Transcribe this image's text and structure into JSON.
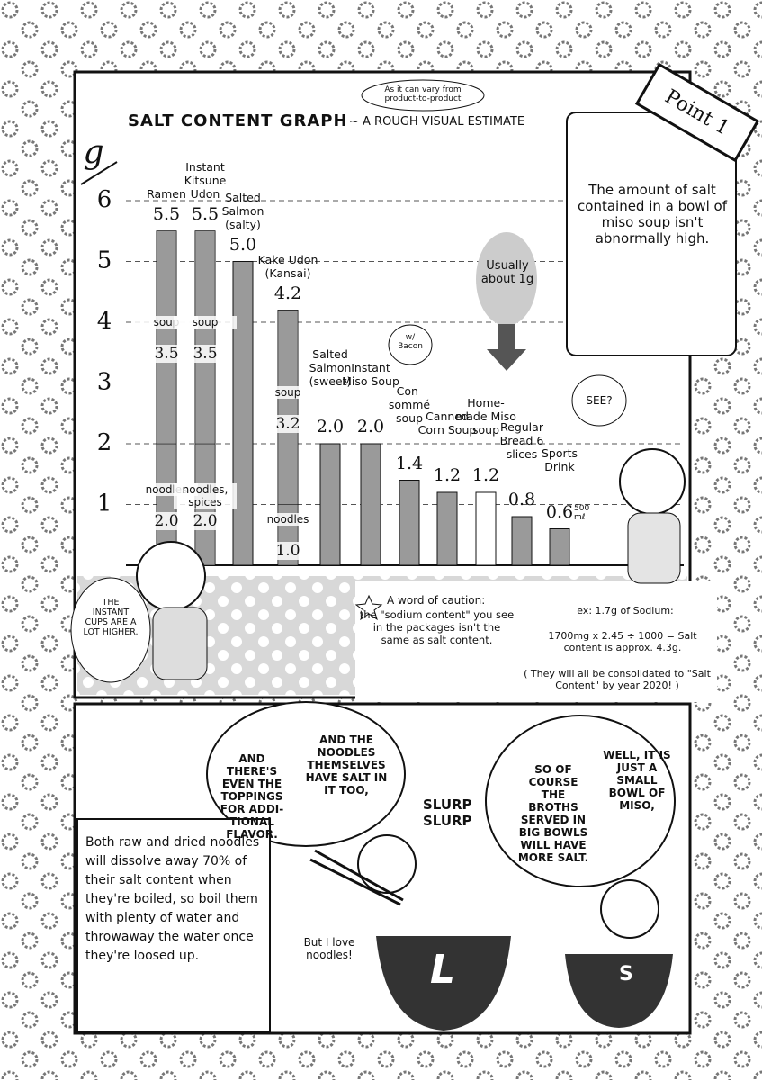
{
  "chart_data": {
    "type": "bar",
    "title": "SALT CONTENT GRAPH",
    "subtitle": "~ A ROUGH VISUAL ESTIMATE",
    "note": "As it can vary from product-to-product",
    "y_label": "g",
    "categories": [
      "Ramen",
      "Instant Kitsune Udon",
      "Salted Salmon (salty)",
      "Kake Udon (Kansai)",
      "Salted Salmon (sweet)",
      "Instant Miso Soup",
      "Con-sommé soup",
      "Canned Corn Soup",
      "Home-made Miso soup",
      "Regular Bread 6 slices",
      "Sports Drink"
    ],
    "values": [
      5.5,
      5.5,
      5.0,
      4.2,
      2.0,
      2.0,
      1.4,
      1.2,
      1.2,
      0.8,
      0.6
    ],
    "value_labels": [
      "5.5",
      "5.5",
      "5.0",
      "4.2",
      "2.0",
      "2.0",
      "1.4",
      "1.2",
      "1.2",
      "0.8",
      "0.6"
    ],
    "parts": [
      [
        {
          "name": "soup",
          "value": 3.5,
          "label": "3.5"
        },
        {
          "name": "noodles",
          "value": 2.0,
          "label": "2.0"
        }
      ],
      [
        {
          "name": "soup",
          "value": 3.5,
          "label": "3.5"
        },
        {
          "name": "noodles, spices",
          "value": 2.0,
          "label": "2.0"
        }
      ],
      null,
      [
        {
          "name": "soup",
          "value": 3.2,
          "label": "3.2"
        },
        {
          "name": "noodles",
          "value": 1.0,
          "label": "1.0"
        }
      ],
      null,
      null,
      null,
      null,
      null,
      null,
      null
    ],
    "colors": [
      "#9a9a9a",
      "#9a9a9a",
      "#9a9a9a",
      "#9a9a9a",
      "#9a9a9a",
      "#9a9a9a",
      "#9a9a9a",
      "#9a9a9a",
      "#ffffff",
      "#9a9a9a",
      "#9a9a9a"
    ],
    "ylim": [
      0,
      6.9
    ],
    "yticks": [
      1,
      2,
      3,
      4,
      5,
      6
    ],
    "grid": true
  },
  "point": "Point 1",
  "info_box": "The amount of salt contained in a bowl of miso soup isn't abnormally high.",
  "usually": "Usually about 1g",
  "bacon": "w/ Bacon",
  "bottle": "500 mℓ",
  "see": "SEE?",
  "instant_cups": "THE INSTANT CUPS ARE A LOT HIGHER.",
  "caution": {
    "title": "A word of caution:",
    "body": "the \"sodium content\" you see in the packages isn't the same as salt content.",
    "example": "ex: 1.7g of Sodium:",
    "formula": "1700mg x 2.45 ÷ 1000 = Salt content is approx. 4.3g.",
    "footnote": "( They will all be consolidated to \"Salt Content\" by year 2020! )"
  },
  "panel2": {
    "toppings": "AND THERE'S EVEN THE TOPPINGS FOR ADDI-TIONAL FLAVOR.",
    "noodles": "AND THE NOODLES THEMSELVES HAVE SALT IN IT TOO,",
    "slurp": "SLURP SLURP",
    "broths": "SO OF COURSE THE BROTHS SERVED IN BIG BOWLS WILL HAVE MORE SALT.",
    "small_bowl": "WELL, IT IS JUST A SMALL BOWL OF MISO,",
    "tip": "Both raw and dried noodles will dissolve away 70% of their salt content when they're boiled, so boil them with plenty of water and throwaway the water once they're loosed up.",
    "love": "But I love noodles!",
    "big": "L",
    "small": "S"
  }
}
